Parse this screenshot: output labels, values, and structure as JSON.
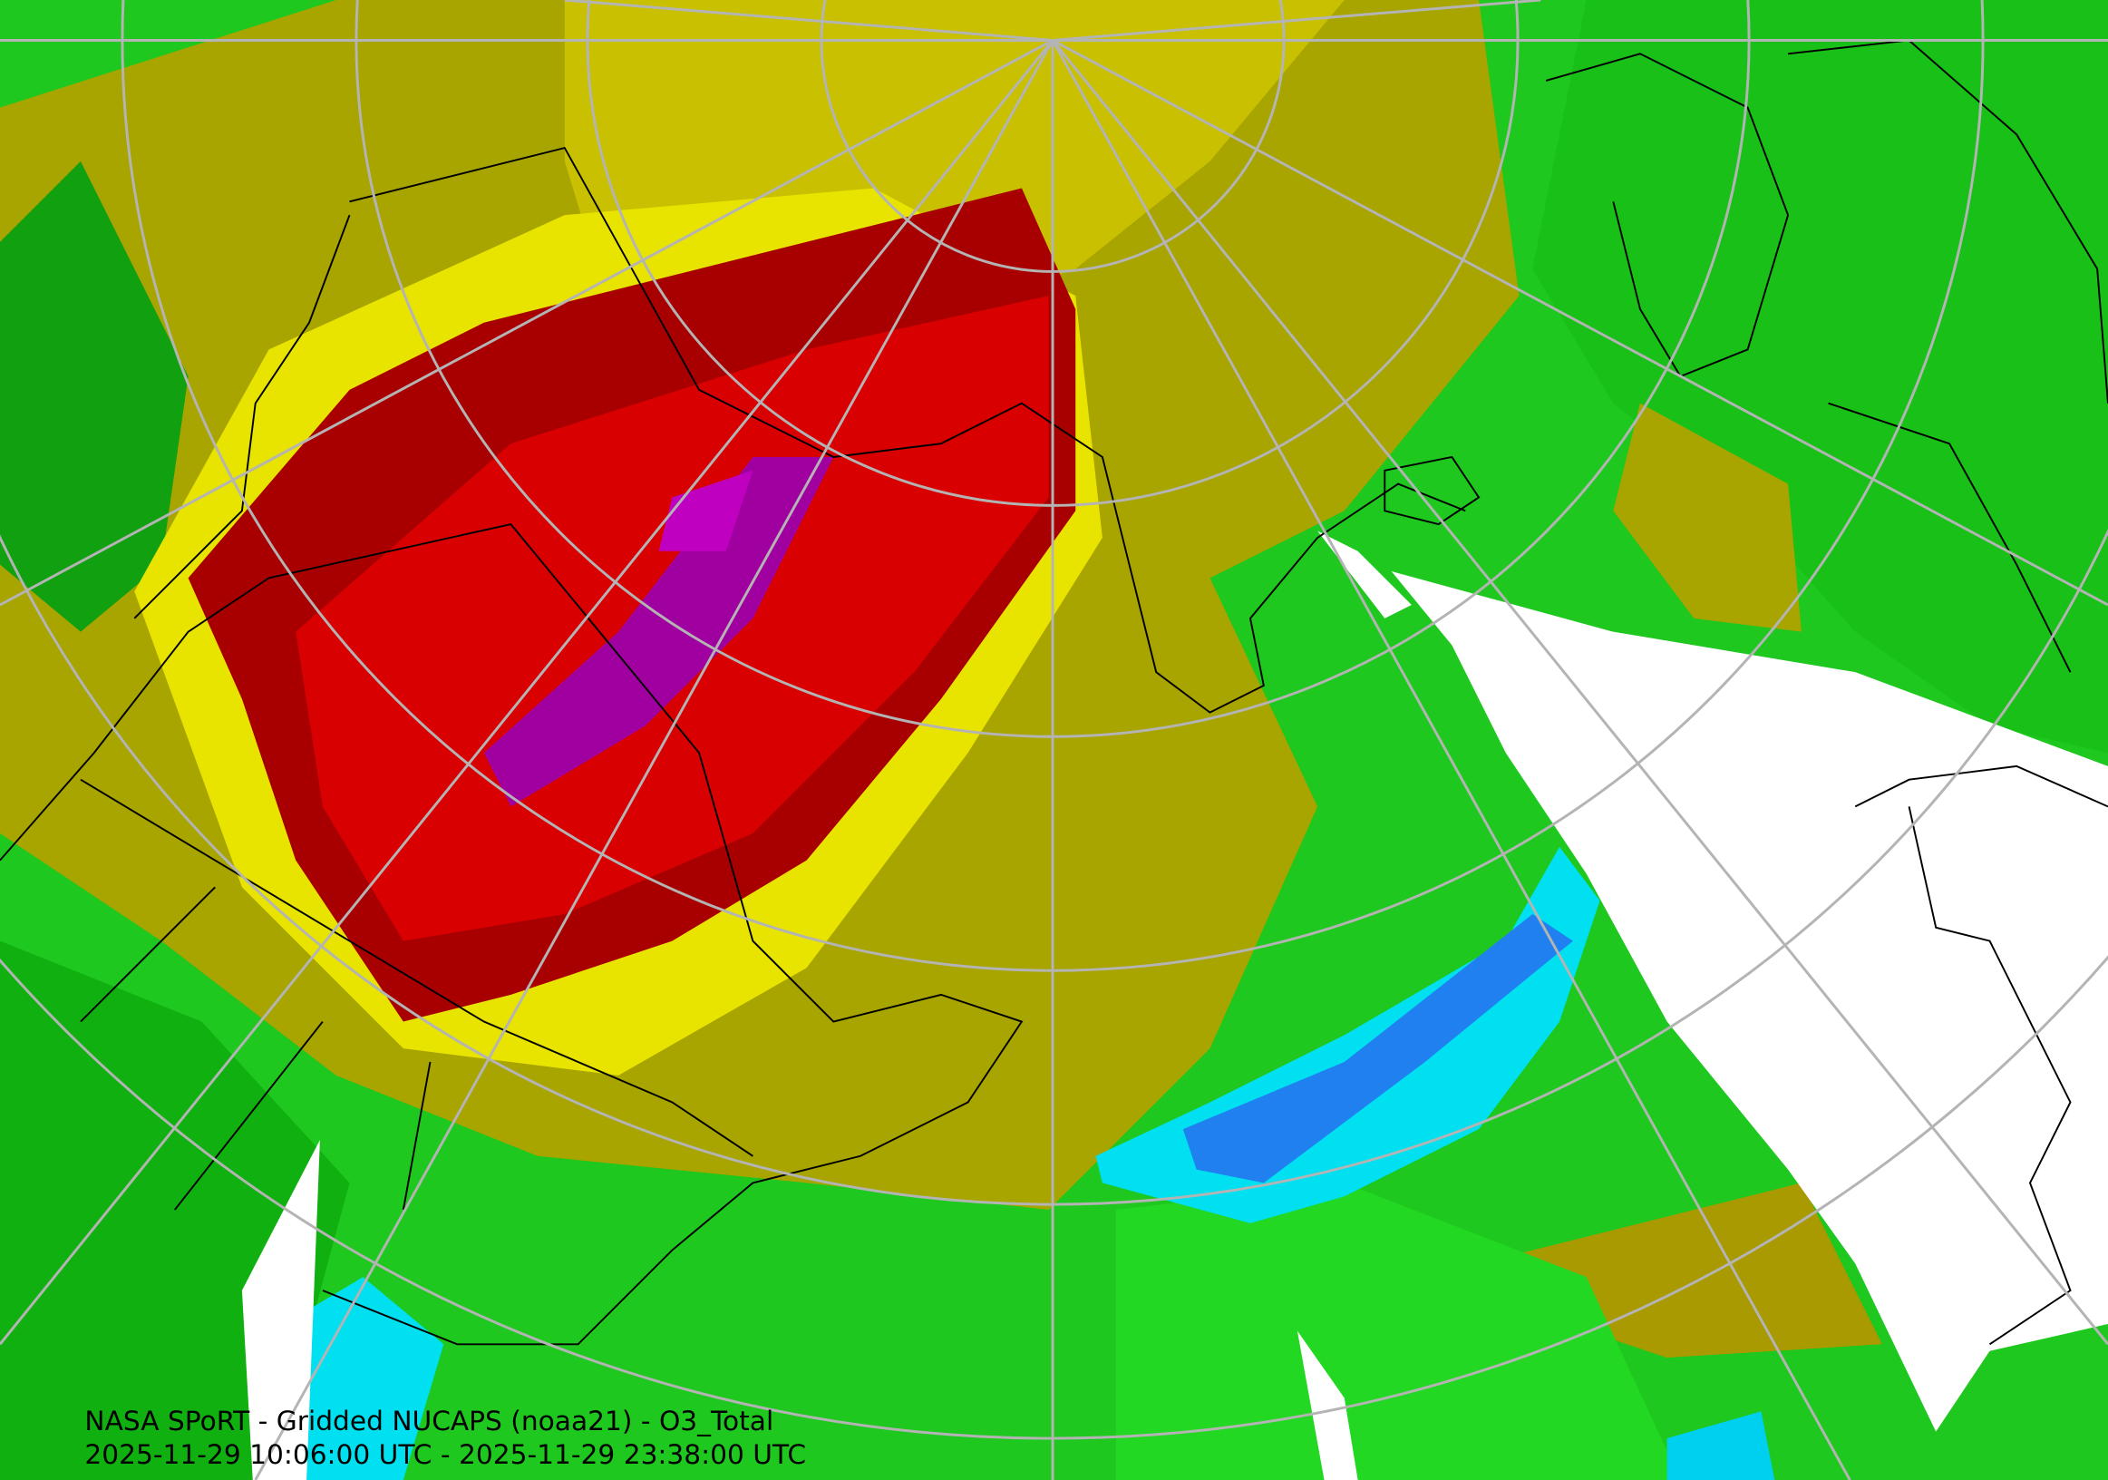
{
  "caption": {
    "title": "NASA SPoRT - Gridded NUCAPS (noaa21) - O3_Total",
    "time_range": "2025-11-29 10:06:00 UTC - 2025-11-29 23:38:00 UTC"
  }
}
